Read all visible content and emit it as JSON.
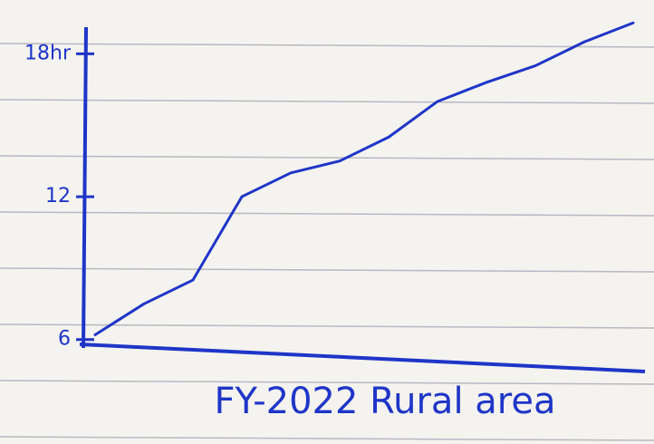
{
  "chart_data": {
    "type": "line",
    "x_label": "FY-2022 Rural area",
    "categories": [
      null,
      null,
      null,
      null,
      null,
      null,
      null,
      null,
      null,
      null,
      null,
      null
    ],
    "series": [
      {
        "color": "#1f35c8",
        "values": [
          6.2,
          7.5,
          8.5,
          12,
          13,
          13.5,
          14.5,
          16,
          16.8,
          17.5,
          18.5,
          19.3
        ]
      }
    ],
    "ylim": [
      5.8,
      19.5
    ],
    "yticks": [
      6,
      12,
      {
        "value": 18,
        "label": "18hr"
      }
    ],
    "grid": false
  }
}
